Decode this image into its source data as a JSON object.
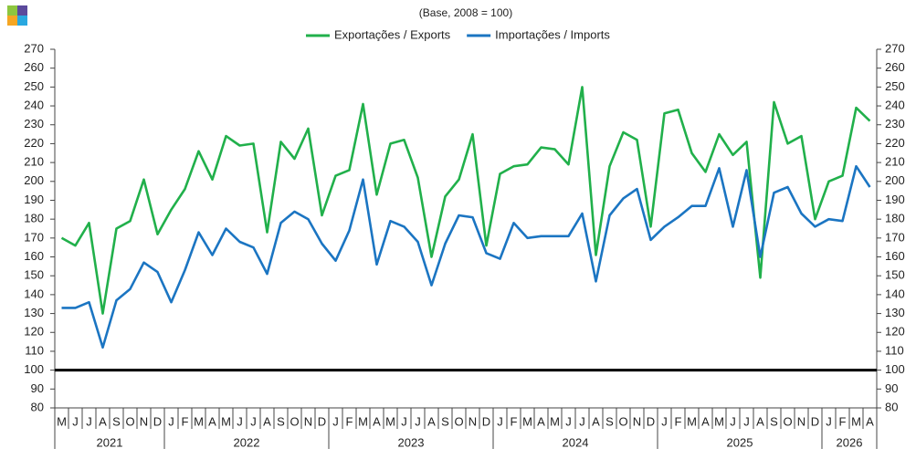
{
  "chart_data": {
    "type": "line",
    "subtitle": "(Base, 2008 = 100)",
    "categories": [
      "M",
      "J",
      "J",
      "A",
      "S",
      "O",
      "N",
      "D",
      "J",
      "F",
      "M",
      "A",
      "M",
      "J",
      "J",
      "A",
      "S",
      "O",
      "N",
      "D",
      "J",
      "F",
      "M",
      "A",
      "M",
      "J",
      "J",
      "A",
      "S",
      "O",
      "N",
      "D",
      "J",
      "F",
      "M",
      "A",
      "M",
      "J",
      "J",
      "A",
      "S",
      "O",
      "N",
      "D",
      "J",
      "F",
      "M",
      "A",
      "M",
      "J",
      "J",
      "A",
      "S",
      "O",
      "N",
      "D",
      "J",
      "F",
      "M",
      "A"
    ],
    "years": [
      "2021",
      "2022",
      "2023",
      "2024",
      "2025",
      "2026"
    ],
    "series": [
      {
        "name": "Exportações / Exports",
        "color": "#21b04b",
        "values": [
          170,
          166,
          178,
          130,
          175,
          179,
          201,
          172,
          185,
          196,
          216,
          201,
          224,
          219,
          220,
          173,
          221,
          212,
          228,
          182,
          203,
          206,
          241,
          193,
          220,
          222,
          202,
          160,
          192,
          201,
          225,
          166,
          204,
          208,
          209,
          218,
          217,
          209,
          250,
          161,
          208,
          226,
          222,
          176,
          236,
          238,
          215,
          205,
          225,
          214,
          221,
          149,
          242,
          220,
          224,
          180,
          200,
          203,
          239,
          232
        ]
      },
      {
        "name": "Importações / Imports",
        "color": "#1b75c2",
        "values": [
          133,
          133,
          136,
          112,
          137,
          143,
          157,
          152,
          136,
          153,
          173,
          161,
          175,
          168,
          165,
          151,
          178,
          184,
          180,
          167,
          158,
          174,
          201,
          156,
          179,
          176,
          168,
          145,
          167,
          182,
          181,
          162,
          159,
          178,
          170,
          171,
          171,
          171,
          183,
          147,
          182,
          191,
          196,
          169,
          176,
          181,
          187,
          187,
          207,
          176,
          206,
          160,
          194,
          197,
          183,
          176,
          180,
          179,
          208,
          197
        ]
      }
    ],
    "reference_line": 100,
    "ylim": [
      80,
      270
    ],
    "yticks": [
      80,
      90,
      100,
      110,
      120,
      130,
      140,
      150,
      160,
      170,
      180,
      190,
      200,
      210,
      220,
      230,
      240,
      250,
      260,
      270
    ],
    "y2lim": [
      80,
      270
    ],
    "y2ticks": [
      80,
      90,
      100,
      110,
      120,
      130,
      140,
      150,
      160,
      170,
      180,
      190,
      200,
      210,
      220,
      230,
      240,
      250,
      260,
      270
    ],
    "grid": false,
    "legend": "top"
  }
}
